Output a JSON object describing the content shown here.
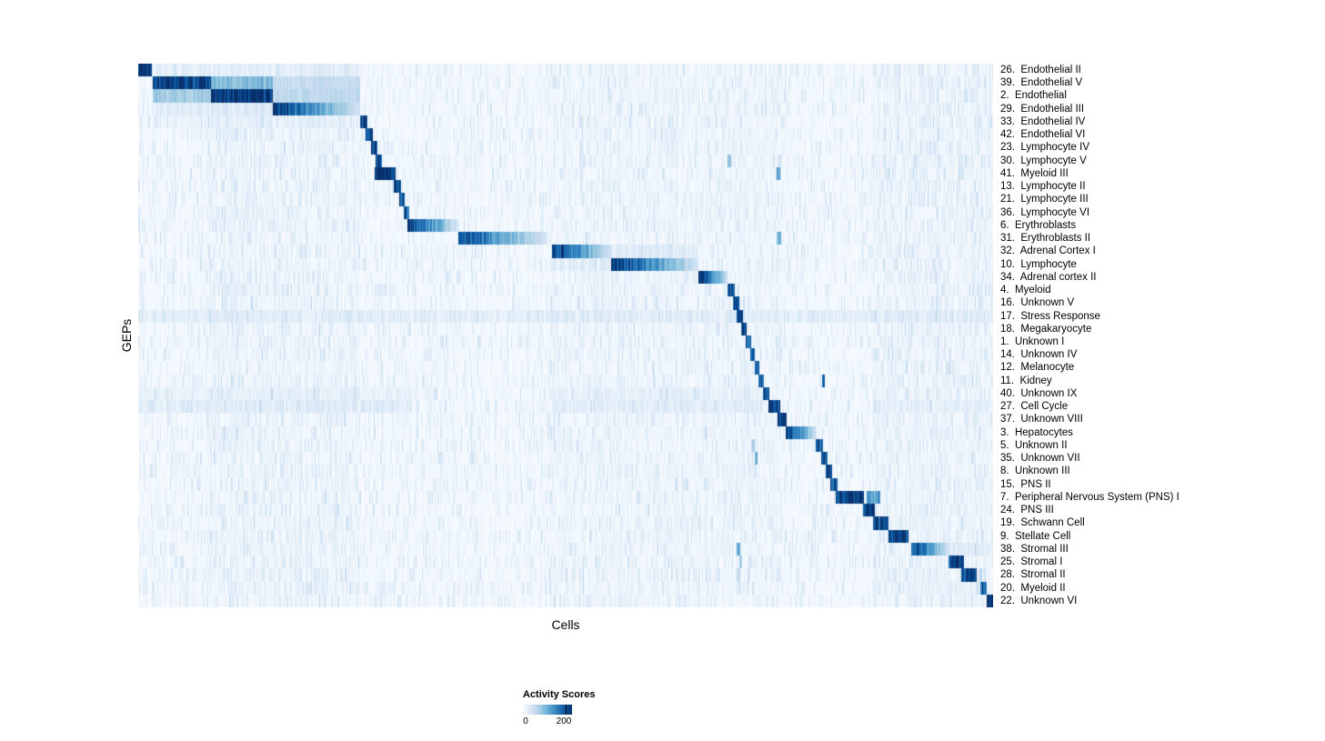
{
  "chart_data": {
    "type": "heatmap",
    "xlabel": "Cells",
    "ylabel": "GEPs",
    "legend": {
      "title": "Activity Scores",
      "min_label": "0",
      "max_label": "200"
    },
    "scale_max": 230,
    "colormap": [
      "#f7fbff",
      "#deebf7",
      "#c6dbef",
      "#9ecae1",
      "#6baed6",
      "#4292c6",
      "#2171b5",
      "#08519c",
      "#08306b"
    ],
    "texture": [
      [
        0.08,
        0.26,
        25
      ],
      [
        0.48,
        0.75,
        18
      ],
      [
        0.86,
        1.0,
        28
      ]
    ],
    "rows": [
      {
        "label": "26.  Endothelial II",
        "blocks": [
          [
            0.0,
            0.015,
            230,
            "f"
          ]
        ],
        "bands": [
          [
            0.015,
            0.26,
            35
          ]
        ]
      },
      {
        "label": "39.  Endothelial V",
        "blocks": [
          [
            0.016,
            0.085,
            220,
            "f"
          ],
          [
            0.085,
            0.157,
            100,
            "f"
          ],
          [
            0.157,
            0.259,
            55,
            "f"
          ]
        ]
      },
      {
        "label": "2.  Endothelial",
        "blocks": [
          [
            0.085,
            0.157,
            230,
            "f"
          ],
          [
            0.016,
            0.085,
            80,
            "f"
          ],
          [
            0.157,
            0.259,
            60,
            "f"
          ]
        ]
      },
      {
        "label": "29.  Endothelial III",
        "blocks": [
          [
            0.157,
            0.259,
            225,
            "l"
          ]
        ],
        "bands": [
          [
            0.016,
            0.157,
            45
          ]
        ]
      },
      {
        "label": "33.  Endothelial IV",
        "blocks": [
          [
            0.259,
            0.268,
            200,
            "f"
          ]
        ],
        "bands": [
          [
            0.016,
            0.259,
            25
          ]
        ]
      },
      {
        "label": "42.  Endothelial VI",
        "blocks": [
          [
            0.266,
            0.274,
            190,
            "f"
          ]
        ]
      },
      {
        "label": "23.  Lymphocyte IV",
        "blocks": [
          [
            0.272,
            0.28,
            200,
            "f"
          ]
        ]
      },
      {
        "label": "30.  Lymphocyte V",
        "blocks": [
          [
            0.277,
            0.285,
            210,
            "f"
          ],
          [
            0.69,
            0.694,
            90,
            "f"
          ]
        ]
      },
      {
        "label": "41.  Myeloid III",
        "blocks": [
          [
            0.276,
            0.301,
            230,
            "f"
          ],
          [
            0.747,
            0.751,
            130,
            "f"
          ]
        ]
      },
      {
        "label": "13.  Lymphocyte II",
        "blocks": [
          [
            0.299,
            0.307,
            200,
            "f"
          ]
        ]
      },
      {
        "label": "21.  Lymphocyte III",
        "blocks": [
          [
            0.305,
            0.312,
            200,
            "f"
          ]
        ]
      },
      {
        "label": "36.  Lymphocyte VI",
        "blocks": [
          [
            0.31,
            0.317,
            190,
            "f"
          ]
        ]
      },
      {
        "label": "6.  Erythroblasts",
        "blocks": [
          [
            0.315,
            0.374,
            220,
            "l"
          ]
        ]
      },
      {
        "label": "31.  Erythroblasts II",
        "blocks": [
          [
            0.374,
            0.477,
            210,
            "l"
          ],
          [
            0.747,
            0.752,
            110,
            "f"
          ]
        ]
      },
      {
        "label": "32.  Adrenal Cortex I",
        "blocks": [
          [
            0.484,
            0.553,
            230,
            "l"
          ]
        ],
        "bands": [
          [
            0.553,
            0.656,
            45
          ]
        ]
      },
      {
        "label": "10.  Lymphocyte",
        "blocks": [
          [
            0.553,
            0.656,
            230,
            "l"
          ]
        ],
        "bands": [
          [
            0.484,
            0.553,
            40
          ]
        ]
      },
      {
        "label": "34.  Adrenal cortex II",
        "blocks": [
          [
            0.655,
            0.69,
            230,
            "l"
          ]
        ]
      },
      {
        "label": "4.  Myeloid",
        "blocks": [
          [
            0.69,
            0.698,
            210,
            "f"
          ]
        ],
        "bands": [
          [
            0.276,
            0.301,
            40
          ]
        ]
      },
      {
        "label": "16.  Unknown V",
        "blocks": [
          [
            0.696,
            0.703,
            200,
            "f"
          ]
        ]
      },
      {
        "label": "17.  Stress Response",
        "blocks": [
          [
            0.7,
            0.708,
            230,
            "f"
          ]
        ],
        "bands": [
          [
            0.0,
            1.0,
            40
          ]
        ]
      },
      {
        "label": "18.  Megakaryocyte",
        "blocks": [
          [
            0.706,
            0.712,
            200,
            "f"
          ]
        ]
      },
      {
        "label": "1.  Unknown I",
        "blocks": [
          [
            0.711,
            0.717,
            190,
            "f"
          ]
        ]
      },
      {
        "label": "14.  Unknown IV",
        "blocks": [
          [
            0.716,
            0.722,
            200,
            "f"
          ]
        ]
      },
      {
        "label": "12.  Melanocyte",
        "blocks": [
          [
            0.721,
            0.727,
            200,
            "f"
          ]
        ]
      },
      {
        "label": "11.  Kidney",
        "blocks": [
          [
            0.726,
            0.732,
            200,
            "f"
          ],
          [
            0.8,
            0.804,
            160,
            "f"
          ]
        ]
      },
      {
        "label": "40.  Unknown IX",
        "blocks": [
          [
            0.731,
            0.739,
            210,
            "f"
          ]
        ],
        "bands": [
          [
            0.0,
            0.32,
            30
          ],
          [
            0.484,
            0.73,
            30
          ]
        ]
      },
      {
        "label": "27.  Cell Cycle",
        "blocks": [
          [
            0.737,
            0.751,
            230,
            "f"
          ]
        ],
        "bands": [
          [
            0.0,
            0.32,
            45
          ],
          [
            0.484,
            0.73,
            40
          ],
          [
            0.86,
            1.0,
            30
          ]
        ]
      },
      {
        "label": "37.  Unknown VIII",
        "blocks": [
          [
            0.748,
            0.759,
            230,
            "f"
          ]
        ]
      },
      {
        "label": "3.  Hepatocytes",
        "blocks": [
          [
            0.758,
            0.794,
            230,
            "l"
          ]
        ]
      },
      {
        "label": "5.  Unknown II",
        "blocks": [
          [
            0.793,
            0.801,
            200,
            "f"
          ],
          [
            0.718,
            0.722,
            80,
            "f"
          ]
        ]
      },
      {
        "label": "35.  Unknown VII",
        "blocks": [
          [
            0.799,
            0.807,
            200,
            "f"
          ],
          [
            0.721,
            0.725,
            110,
            "f"
          ]
        ]
      },
      {
        "label": "8.  Unknown III",
        "blocks": [
          [
            0.805,
            0.812,
            200,
            "f"
          ]
        ]
      },
      {
        "label": "15.  PNS II",
        "blocks": [
          [
            0.81,
            0.818,
            210,
            "f"
          ]
        ]
      },
      {
        "label": "7.  Peripheral Nervous System (PNS) I",
        "blocks": [
          [
            0.816,
            0.849,
            230,
            "f"
          ],
          [
            0.852,
            0.868,
            130,
            "f"
          ]
        ]
      },
      {
        "label": "24.  PNS III",
        "blocks": [
          [
            0.848,
            0.862,
            210,
            "f"
          ]
        ]
      },
      {
        "label": "19.  Schwann Cell",
        "blocks": [
          [
            0.86,
            0.878,
            215,
            "f"
          ]
        ]
      },
      {
        "label": "9.  Stellate Cell",
        "blocks": [
          [
            0.878,
            0.901,
            225,
            "f"
          ]
        ]
      },
      {
        "label": "38.  Stromal III",
        "blocks": [
          [
            0.905,
            0.95,
            215,
            "l"
          ],
          [
            0.7,
            0.704,
            130,
            "f"
          ]
        ],
        "bands": [
          [
            0.95,
            1.0,
            40
          ]
        ]
      },
      {
        "label": "25.  Stromal I",
        "blocks": [
          [
            0.948,
            0.966,
            210,
            "f"
          ],
          [
            0.703,
            0.707,
            90,
            "f"
          ]
        ]
      },
      {
        "label": "28.  Stromal II",
        "blocks": [
          [
            0.963,
            0.981,
            210,
            "f"
          ],
          [
            0.7,
            0.704,
            60,
            "f"
          ]
        ]
      },
      {
        "label": "20.  Myeloid II",
        "blocks": [
          [
            0.986,
            0.993,
            200,
            "f"
          ]
        ],
        "bands": [
          [
            0.276,
            0.301,
            35
          ],
          [
            0.86,
            0.99,
            25
          ]
        ]
      },
      {
        "label": "22.  Unknown VI",
        "blocks": [
          [
            0.993,
            1.0,
            230,
            "f"
          ]
        ]
      }
    ]
  }
}
